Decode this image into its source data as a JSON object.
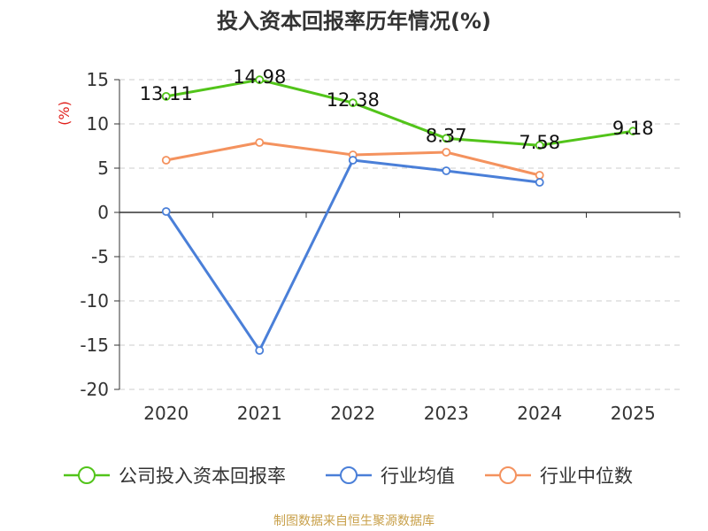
{
  "chart_data": {
    "type": "line",
    "title": "投入资本回报率历年情况(%)",
    "unit": "(%)",
    "categories": [
      "2020",
      "2021",
      "2022",
      "2023",
      "2024",
      "2025"
    ],
    "ylim": [
      -20,
      15
    ],
    "yticks": [
      15,
      10,
      5,
      0,
      -5,
      -10,
      -15,
      -20
    ],
    "grid": true,
    "legend_position": "bottom",
    "series": [
      {
        "name": "公司投入资本回报率",
        "color": "#52c41a",
        "values": [
          13.11,
          14.98,
          12.38,
          8.37,
          7.58,
          9.18
        ],
        "labels": [
          "13.11",
          "14.98",
          "12.38",
          "8.37",
          "7.58",
          "9.18"
        ]
      },
      {
        "name": "行业均值",
        "color": "#4a7fd8",
        "values": [
          0.1,
          -15.6,
          5.9,
          4.7,
          3.4,
          null
        ]
      },
      {
        "name": "行业中位数",
        "color": "#f4925e",
        "values": [
          5.9,
          7.9,
          6.5,
          6.8,
          4.2,
          null
        ]
      }
    ],
    "source": "制图数据来自恒生聚源数据库"
  }
}
